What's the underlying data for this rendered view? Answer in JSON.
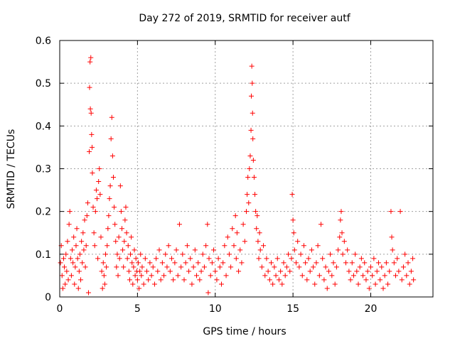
{
  "chart_data": {
    "type": "scatter",
    "title": "Day 272 of 2019, SRMTID for receiver autf",
    "xlabel": "GPS time / hours",
    "ylabel": "SRMTID / TECUs",
    "xlim": [
      0,
      24
    ],
    "ylim": [
      0,
      0.6
    ],
    "xticks": [
      0,
      5,
      10,
      15,
      20
    ],
    "yticks": [
      0,
      0.1,
      0.2,
      0.3,
      0.4,
      0.5,
      0.6
    ],
    "xtick_labels": [
      "0",
      "5",
      "10",
      "15",
      "20"
    ],
    "ytick_labels": [
      "0",
      "0.1",
      "0.2",
      "0.3",
      "0.4",
      "0.5",
      "0.6"
    ],
    "grid": true,
    "marker": "+",
    "color": "#ff0000",
    "series": [
      {
        "name": "SRMTID",
        "points": [
          [
            0.05,
            0.08
          ],
          [
            0.1,
            0.12
          ],
          [
            0.15,
            0.05
          ],
          [
            0.2,
            0.02
          ],
          [
            0.25,
            0.09
          ],
          [
            0.3,
            0.07
          ],
          [
            0.35,
            0.03
          ],
          [
            0.4,
            0.1
          ],
          [
            0.45,
            0.06
          ],
          [
            0.5,
            0.13
          ],
          [
            0.55,
            0.04
          ],
          [
            0.6,
            0.17
          ],
          [
            0.65,
            0.2
          ],
          [
            0.7,
            0.09
          ],
          [
            0.75,
            0.05
          ],
          [
            0.8,
            0.11
          ],
          [
            0.85,
            0.08
          ],
          [
            0.9,
            0.14
          ],
          [
            0.95,
            0.03
          ],
          [
            1.0,
            0.07
          ],
          [
            1.05,
            0.12
          ],
          [
            1.1,
            0.16
          ],
          [
            1.15,
            0.09
          ],
          [
            1.2,
            0.02
          ],
          [
            1.25,
            0.06
          ],
          [
            1.3,
            0.1
          ],
          [
            1.35,
            0.04
          ],
          [
            1.4,
            0.13
          ],
          [
            1.45,
            0.08
          ],
          [
            1.5,
            0.15
          ],
          [
            1.55,
            0.11
          ],
          [
            1.6,
            0.18
          ],
          [
            1.65,
            0.07
          ],
          [
            1.7,
            0.12
          ],
          [
            1.75,
            0.19
          ],
          [
            1.8,
            0.22
          ],
          [
            1.85,
            0.01
          ],
          [
            1.9,
            0.34
          ],
          [
            1.92,
            0.49
          ],
          [
            1.95,
            0.55
          ],
          [
            1.97,
            0.44
          ],
          [
            2.0,
            0.56
          ],
          [
            2.02,
            0.43
          ],
          [
            2.05,
            0.38
          ],
          [
            2.08,
            0.35
          ],
          [
            2.1,
            0.29
          ],
          [
            2.15,
            0.21
          ],
          [
            2.2,
            0.15
          ],
          [
            2.25,
            0.12
          ],
          [
            2.3,
            0.2
          ],
          [
            2.35,
            0.25
          ],
          [
            2.4,
            0.23
          ],
          [
            2.45,
            0.09
          ],
          [
            2.5,
            0.27
          ],
          [
            2.55,
            0.3
          ],
          [
            2.6,
            0.24
          ],
          [
            2.65,
            0.14
          ],
          [
            2.7,
            0.06
          ],
          [
            2.75,
            0.02
          ],
          [
            2.8,
            0.08
          ],
          [
            2.85,
            0.05
          ],
          [
            2.9,
            0.03
          ],
          [
            2.95,
            0.1
          ],
          [
            3.0,
            0.07
          ],
          [
            3.05,
            0.12
          ],
          [
            3.1,
            0.16
          ],
          [
            3.15,
            0.19
          ],
          [
            3.2,
            0.23
          ],
          [
            3.25,
            0.26
          ],
          [
            3.3,
            0.37
          ],
          [
            3.35,
            0.42
          ],
          [
            3.4,
            0.33
          ],
          [
            3.45,
            0.28
          ],
          [
            3.5,
            0.21
          ],
          [
            3.55,
            0.17
          ],
          [
            3.6,
            0.13
          ],
          [
            3.65,
            0.07
          ],
          [
            3.7,
            0.1
          ],
          [
            3.75,
            0.05
          ],
          [
            3.8,
            0.14
          ],
          [
            3.85,
            0.09
          ],
          [
            3.9,
            0.26
          ],
          [
            3.95,
            0.2
          ],
          [
            4.0,
            0.16
          ],
          [
            4.05,
            0.11
          ],
          [
            4.1,
            0.07
          ],
          [
            4.15,
            0.13
          ],
          [
            4.2,
            0.18
          ],
          [
            4.25,
            0.21
          ],
          [
            4.3,
            0.15
          ],
          [
            4.35,
            0.09
          ],
          [
            4.4,
            0.12
          ],
          [
            4.45,
            0.06
          ],
          [
            4.5,
            0.04
          ],
          [
            4.55,
            0.1
          ],
          [
            4.6,
            0.14
          ],
          [
            4.65,
            0.08
          ],
          [
            4.7,
            0.03
          ],
          [
            4.75,
            0.07
          ],
          [
            4.8,
            0.11
          ],
          [
            4.85,
            0.05
          ],
          [
            4.9,
            0.09
          ],
          [
            4.95,
            0.06
          ],
          [
            5.0,
            0.04
          ],
          [
            5.05,
            0.08
          ],
          [
            5.1,
            0.02
          ],
          [
            5.15,
            0.06
          ],
          [
            5.2,
            0.1
          ],
          [
            5.25,
            0.05
          ],
          [
            5.3,
            0.07
          ],
          [
            5.4,
            0.03
          ],
          [
            5.5,
            0.09
          ],
          [
            5.6,
            0.06
          ],
          [
            5.7,
            0.04
          ],
          [
            5.8,
            0.08
          ],
          [
            5.9,
            0.05
          ],
          [
            6.0,
            0.07
          ],
          [
            6.1,
            0.03
          ],
          [
            6.2,
            0.09
          ],
          [
            6.3,
            0.06
          ],
          [
            6.4,
            0.11
          ],
          [
            6.5,
            0.04
          ],
          [
            6.6,
            0.08
          ],
          [
            6.7,
            0.05
          ],
          [
            6.8,
            0.1
          ],
          [
            6.9,
            0.07
          ],
          [
            7.0,
            0.12
          ],
          [
            7.1,
            0.06
          ],
          [
            7.2,
            0.09
          ],
          [
            7.3,
            0.04
          ],
          [
            7.4,
            0.08
          ],
          [
            7.5,
            0.11
          ],
          [
            7.6,
            0.05
          ],
          [
            7.7,
            0.17
          ],
          [
            7.8,
            0.07
          ],
          [
            7.9,
            0.1
          ],
          [
            8.0,
            0.04
          ],
          [
            8.1,
            0.08
          ],
          [
            8.2,
            0.12
          ],
          [
            8.3,
            0.06
          ],
          [
            8.4,
            0.09
          ],
          [
            8.5,
            0.03
          ],
          [
            8.6,
            0.07
          ],
          [
            8.7,
            0.11
          ],
          [
            8.8,
            0.05
          ],
          [
            8.9,
            0.08
          ],
          [
            9.0,
            0.04
          ],
          [
            9.1,
            0.06
          ],
          [
            9.2,
            0.1
          ],
          [
            9.3,
            0.07
          ],
          [
            9.4,
            0.12
          ],
          [
            9.5,
            0.17
          ],
          [
            9.55,
            0.01
          ],
          [
            9.6,
            0.09
          ],
          [
            9.7,
            0.05
          ],
          [
            9.8,
            0.08
          ],
          [
            9.9,
            0.11
          ],
          [
            10.0,
            0.06
          ],
          [
            10.1,
            0.04
          ],
          [
            10.2,
            0.09
          ],
          [
            10.3,
            0.07
          ],
          [
            10.4,
            0.03
          ],
          [
            10.5,
            0.08
          ],
          [
            10.6,
            0.12
          ],
          [
            10.7,
            0.05
          ],
          [
            10.8,
            0.14
          ],
          [
            10.9,
            0.1
          ],
          [
            11.0,
            0.07
          ],
          [
            11.1,
            0.16
          ],
          [
            11.2,
            0.12
          ],
          [
            11.3,
            0.19
          ],
          [
            11.35,
            0.09
          ],
          [
            11.4,
            0.15
          ],
          [
            11.5,
            0.06
          ],
          [
            11.6,
            0.11
          ],
          [
            11.7,
            0.08
          ],
          [
            11.8,
            0.17
          ],
          [
            11.9,
            0.13
          ],
          [
            12.0,
            0.2
          ],
          [
            12.05,
            0.24
          ],
          [
            12.1,
            0.28
          ],
          [
            12.15,
            0.22
          ],
          [
            12.2,
            0.3
          ],
          [
            12.25,
            0.33
          ],
          [
            12.3,
            0.39
          ],
          [
            12.32,
            0.47
          ],
          [
            12.35,
            0.54
          ],
          [
            12.38,
            0.5
          ],
          [
            12.4,
            0.43
          ],
          [
            12.42,
            0.37
          ],
          [
            12.45,
            0.32
          ],
          [
            12.5,
            0.28
          ],
          [
            12.55,
            0.24
          ],
          [
            12.6,
            0.2
          ],
          [
            12.65,
            0.16
          ],
          [
            12.7,
            0.19
          ],
          [
            12.75,
            0.13
          ],
          [
            12.8,
            0.09
          ],
          [
            12.85,
            0.15
          ],
          [
            12.9,
            0.11
          ],
          [
            13.0,
            0.07
          ],
          [
            13.1,
            0.12
          ],
          [
            13.2,
            0.05
          ],
          [
            13.3,
            0.09
          ],
          [
            13.4,
            0.06
          ],
          [
            13.5,
            0.04
          ],
          [
            13.6,
            0.08
          ],
          [
            13.7,
            0.03
          ],
          [
            13.8,
            0.07
          ],
          [
            13.9,
            0.05
          ],
          [
            14.0,
            0.09
          ],
          [
            14.1,
            0.04
          ],
          [
            14.2,
            0.06
          ],
          [
            14.3,
            0.03
          ],
          [
            14.4,
            0.08
          ],
          [
            14.5,
            0.05
          ],
          [
            14.6,
            0.07
          ],
          [
            14.7,
            0.1
          ],
          [
            14.8,
            0.06
          ],
          [
            14.9,
            0.09
          ],
          [
            14.95,
            0.24
          ],
          [
            15.0,
            0.18
          ],
          [
            15.05,
            0.15
          ],
          [
            15.1,
            0.11
          ],
          [
            15.2,
            0.08
          ],
          [
            15.3,
            0.13
          ],
          [
            15.4,
            0.07
          ],
          [
            15.5,
            0.1
          ],
          [
            15.6,
            0.05
          ],
          [
            15.7,
            0.12
          ],
          [
            15.8,
            0.08
          ],
          [
            15.9,
            0.04
          ],
          [
            16.0,
            0.09
          ],
          [
            16.1,
            0.06
          ],
          [
            16.2,
            0.11
          ],
          [
            16.3,
            0.07
          ],
          [
            16.4,
            0.03
          ],
          [
            16.5,
            0.08
          ],
          [
            16.6,
            0.12
          ],
          [
            16.7,
            0.05
          ],
          [
            16.8,
            0.17
          ],
          [
            16.9,
            0.09
          ],
          [
            17.0,
            0.04
          ],
          [
            17.1,
            0.07
          ],
          [
            17.2,
            0.02
          ],
          [
            17.3,
            0.06
          ],
          [
            17.4,
            0.1
          ],
          [
            17.5,
            0.05
          ],
          [
            17.6,
            0.08
          ],
          [
            17.7,
            0.03
          ],
          [
            17.8,
            0.07
          ],
          [
            17.9,
            0.11
          ],
          [
            18.0,
            0.14
          ],
          [
            18.05,
            0.18
          ],
          [
            18.1,
            0.2
          ],
          [
            18.15,
            0.15
          ],
          [
            18.2,
            0.1
          ],
          [
            18.3,
            0.13
          ],
          [
            18.4,
            0.08
          ],
          [
            18.5,
            0.11
          ],
          [
            18.6,
            0.06
          ],
          [
            18.7,
            0.04
          ],
          [
            18.8,
            0.08
          ],
          [
            18.9,
            0.05
          ],
          [
            19.0,
            0.1
          ],
          [
            19.1,
            0.06
          ],
          [
            19.2,
            0.03
          ],
          [
            19.3,
            0.07
          ],
          [
            19.4,
            0.09
          ],
          [
            19.5,
            0.05
          ],
          [
            19.6,
            0.08
          ],
          [
            19.7,
            0.04
          ],
          [
            19.8,
            0.06
          ],
          [
            19.9,
            0.02
          ],
          [
            20.0,
            0.07
          ],
          [
            20.1,
            0.05
          ],
          [
            20.2,
            0.09
          ],
          [
            20.3,
            0.03
          ],
          [
            20.4,
            0.06
          ],
          [
            20.5,
            0.08
          ],
          [
            20.6,
            0.04
          ],
          [
            20.7,
            0.07
          ],
          [
            20.8,
            0.02
          ],
          [
            20.9,
            0.05
          ],
          [
            21.0,
            0.08
          ],
          [
            21.1,
            0.03
          ],
          [
            21.2,
            0.06
          ],
          [
            21.3,
            0.2
          ],
          [
            21.35,
            0.14
          ],
          [
            21.4,
            0.11
          ],
          [
            21.5,
            0.08
          ],
          [
            21.6,
            0.05
          ],
          [
            21.7,
            0.09
          ],
          [
            21.8,
            0.06
          ],
          [
            21.9,
            0.2
          ],
          [
            22.0,
            0.04
          ],
          [
            22.1,
            0.07
          ],
          [
            22.2,
            0.1
          ],
          [
            22.3,
            0.05
          ],
          [
            22.4,
            0.08
          ],
          [
            22.5,
            0.03
          ],
          [
            22.6,
            0.06
          ],
          [
            22.7,
            0.09
          ],
          [
            22.75,
            0.04
          ]
        ]
      }
    ]
  }
}
